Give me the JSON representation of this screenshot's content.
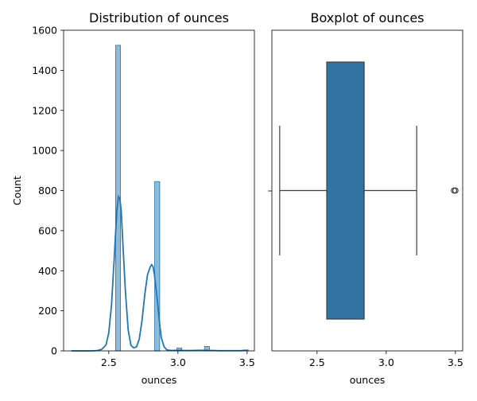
{
  "chart_data": [
    {
      "type": "bar",
      "subtype": "histogram-with-kde",
      "title": "Distribution of ounces",
      "xlabel": "ounces",
      "ylabel": "Count",
      "xlim": [
        2.1735,
        3.5525
      ],
      "ylim": [
        0,
        1600
      ],
      "xticks": [
        2.5,
        3.0,
        3.5
      ],
      "xtick_labels": [
        "2.5",
        "3.0",
        "3.5"
      ],
      "yticks": [
        0,
        200,
        400,
        600,
        800,
        1000,
        1200,
        1400,
        1600
      ],
      "ytick_labels": [
        "0",
        "200",
        "400",
        "600",
        "800",
        "1000",
        "1200",
        "1400",
        "1600"
      ],
      "grid": false,
      "bar_color": "#1f77b4",
      "bar_opacity": 0.5,
      "line_color": "#1f77b4",
      "bins": [
        {
          "x0": 2.5491,
          "x1": 2.5851,
          "count": 1525
        },
        {
          "x0": 2.8319,
          "x1": 2.8679,
          "count": 845
        },
        {
          "x0": 2.9919,
          "x1": 3.0279,
          "count": 14
        },
        {
          "x0": 3.1919,
          "x1": 3.2279,
          "count": 22
        },
        {
          "x0": 3.4719,
          "x1": 3.5079,
          "count": 5
        }
      ],
      "kde": {
        "x": [
          2.23,
          2.28,
          2.33,
          2.38,
          2.42,
          2.45,
          2.48,
          2.5,
          2.52,
          2.54,
          2.55,
          2.56,
          2.57,
          2.58,
          2.59,
          2.6,
          2.62,
          2.64,
          2.66,
          2.68,
          2.7,
          2.72,
          2.74,
          2.76,
          2.78,
          2.8,
          2.81,
          2.82,
          2.83,
          2.84,
          2.85,
          2.86,
          2.87,
          2.88,
          2.9,
          2.92,
          2.95,
          3.0,
          3.05,
          3.1,
          3.15,
          3.2,
          3.25,
          3.3,
          3.35,
          3.4,
          3.45,
          3.5
        ],
        "y": [
          0,
          0,
          0,
          0,
          2,
          8,
          30,
          90,
          230,
          470,
          600,
          710,
          770,
          760,
          700,
          560,
          300,
          105,
          28,
          15,
          20,
          58,
          150,
          280,
          380,
          420,
          430,
          420,
          380,
          320,
          260,
          190,
          120,
          65,
          20,
          5,
          2,
          3,
          2,
          2,
          3,
          3,
          2,
          1,
          1,
          1,
          1,
          2
        ]
      }
    },
    {
      "type": "boxplot",
      "title": "Boxplot of ounces",
      "xlabel": "ounces",
      "xlim": [
        2.1735,
        3.5525
      ],
      "xticks": [
        2.5,
        3.0,
        3.5
      ],
      "xtick_labels": [
        "2.5",
        "3.0",
        "3.5"
      ],
      "grid": false,
      "box_color": "#3274a1",
      "stats": {
        "whisker_low": 2.23,
        "q1": 2.57,
        "median": 2.84,
        "q3": 2.84,
        "whisker_high": 3.22,
        "outliers": [
          3.49,
          3.5
        ]
      }
    }
  ]
}
